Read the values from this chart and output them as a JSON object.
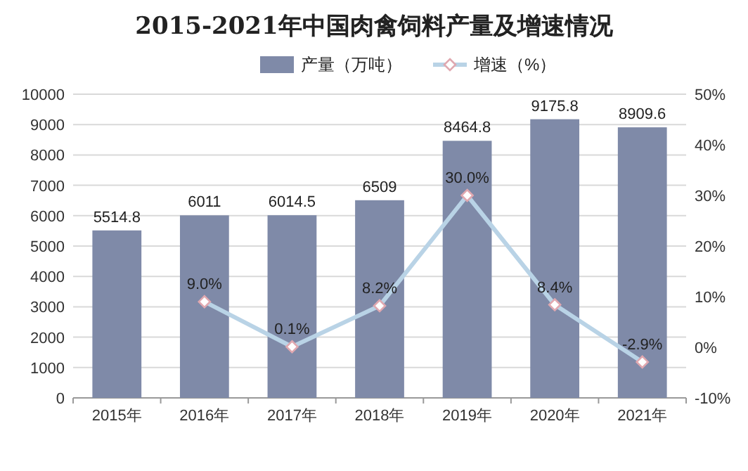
{
  "chart_data": {
    "type": "bar",
    "title": "2015-2021年中国肉禽饲料产量及增速情况",
    "categories": [
      "2015年",
      "2016年",
      "2017年",
      "2018年",
      "2019年",
      "2020年",
      "2021年"
    ],
    "series": [
      {
        "name": "产量（万吨）",
        "color": "#7f8aa8",
        "values": [
          5514.8,
          6011,
          6014.5,
          6509,
          8464.8,
          9175.8,
          8909.6
        ],
        "value_labels": [
          "5514.8",
          "6011",
          "6014.5",
          "6509",
          "8464.8",
          "9175.8",
          "8909.6"
        ]
      },
      {
        "name": "增速（%）",
        "type": "line",
        "axis": "y2",
        "color": "#b9d3e6",
        "marker": "diamond",
        "values": [
          null,
          9.0,
          0.1,
          8.2,
          30.0,
          8.4,
          -2.9
        ],
        "value_labels": [
          null,
          "9.0%",
          "0.1%",
          "8.2%",
          "30.0%",
          "8.4%",
          "-2.9%"
        ]
      }
    ],
    "ylim": [
      0,
      10000
    ],
    "yticks": [
      0,
      1000,
      2000,
      3000,
      4000,
      5000,
      6000,
      7000,
      8000,
      9000,
      10000
    ],
    "y2lim": [
      -10,
      50
    ],
    "y2ticks": [
      {
        "value": -10,
        "label": "-10%"
      },
      {
        "value": 0,
        "label": "0%"
      },
      {
        "value": 10,
        "label": "10%"
      },
      {
        "value": 20,
        "label": "20%"
      },
      {
        "value": 30,
        "label": "30%"
      },
      {
        "value": 40,
        "label": "40%"
      },
      {
        "value": 50,
        "label": "50%"
      }
    ],
    "grid": "y",
    "legend": "top"
  }
}
